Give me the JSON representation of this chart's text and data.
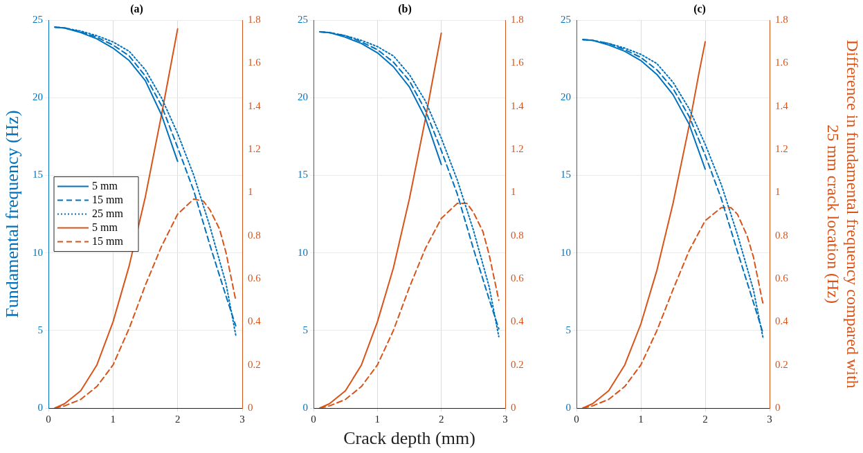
{
  "chart_data": [
    {
      "type": "line",
      "title": "(a)",
      "ylabel": "Fundamental frequency (Hz)",
      "xlim": [
        0,
        3
      ],
      "xticks": [
        0,
        1,
        2,
        3
      ],
      "ylim": [
        0,
        25
      ],
      "yticks": [
        0,
        5,
        10,
        15,
        20,
        25
      ],
      "y2lim": [
        0,
        1.8
      ],
      "y2ticks": [
        0,
        0.2,
        0.4,
        0.6,
        0.8,
        1,
        1.2,
        1.4,
        1.6,
        1.8
      ],
      "grid": true,
      "legend": "left",
      "marker": "none",
      "series": [
        {
          "name": "5 mm",
          "color": "#0072bd",
          "line_style": "solid",
          "x": [
            0.1,
            0.25,
            0.5,
            0.75,
            1,
            1.25,
            1.5,
            1.75,
            2
          ],
          "values": [
            24.55,
            24.5,
            24.2,
            23.8,
            23.2,
            22.4,
            21.1,
            18.9,
            15.9
          ]
        },
        {
          "name": "15 mm",
          "color": "#0072bd",
          "line_style": "dashed",
          "x": [
            0.1,
            0.25,
            0.5,
            0.75,
            1,
            1.25,
            1.5,
            1.75,
            2,
            2.25,
            2.5,
            2.75,
            2.9
          ],
          "values": [
            24.55,
            24.5,
            24.25,
            23.9,
            23.4,
            22.7,
            21.4,
            19.5,
            16.8,
            14,
            10.5,
            7.2,
            5.3
          ]
        },
        {
          "name": "25 mm",
          "color": "#0072bd",
          "line_style": "dotted",
          "x": [
            0.1,
            0.25,
            0.5,
            0.75,
            1,
            1.25,
            1.5,
            1.75,
            2,
            2.25,
            2.5,
            2.75,
            2.9
          ],
          "values": [
            24.55,
            24.5,
            24.3,
            24,
            23.6,
            23,
            21.8,
            20,
            17.7,
            15,
            11.7,
            8,
            4.7
          ]
        },
        {
          "name": "5 mm",
          "color": "#d95319",
          "line_style": "solid",
          "axis": "y2",
          "x": [
            0.1,
            0.25,
            0.5,
            0.75,
            1,
            1.25,
            1.5,
            1.75,
            1.9,
            2
          ],
          "values": [
            0,
            0.02,
            0.08,
            0.2,
            0.4,
            0.66,
            0.98,
            1.36,
            1.6,
            1.76
          ]
        },
        {
          "name": "15 mm",
          "color": "#d95319",
          "line_style": "dashed",
          "axis": "y2",
          "x": [
            0.1,
            0.25,
            0.5,
            0.75,
            1,
            1.25,
            1.5,
            1.75,
            2,
            2.25,
            2.4,
            2.5,
            2.65,
            2.75,
            2.9
          ],
          "values": [
            0,
            0.01,
            0.04,
            0.1,
            0.2,
            0.37,
            0.57,
            0.75,
            0.9,
            0.97,
            0.96,
            0.92,
            0.83,
            0.72,
            0.5
          ]
        }
      ]
    },
    {
      "type": "line",
      "title": "(b)",
      "xlabel": "Crack depth (mm)",
      "xlim": [
        0,
        3
      ],
      "xticks": [
        0,
        1,
        2,
        3
      ],
      "ylim": [
        0,
        25
      ],
      "yticks": [
        0,
        5,
        10,
        15,
        20,
        25
      ],
      "y2lim": [
        0,
        1.8
      ],
      "y2ticks": [
        0,
        0.2,
        0.4,
        0.6,
        0.8,
        1,
        1.2,
        1.4,
        1.6,
        1.8
      ],
      "grid": true,
      "marker": "none",
      "series": [
        {
          "color": "#0072bd",
          "line_style": "solid",
          "x": [
            0.1,
            0.25,
            0.5,
            0.75,
            1,
            1.25,
            1.5,
            1.75,
            2
          ],
          "values": [
            24.25,
            24.2,
            23.9,
            23.5,
            22.9,
            22,
            20.7,
            18.7,
            15.7
          ]
        },
        {
          "color": "#0072bd",
          "line_style": "dashed",
          "x": [
            0.1,
            0.25,
            0.5,
            0.75,
            1,
            1.25,
            1.5,
            1.75,
            2,
            2.25,
            2.5,
            2.75,
            2.9
          ],
          "values": [
            24.25,
            24.2,
            24,
            23.6,
            23.1,
            22.3,
            21.1,
            19.2,
            16.6,
            13.8,
            10.3,
            7,
            5.1
          ]
        },
        {
          "color": "#0072bd",
          "line_style": "dotted",
          "x": [
            0.1,
            0.25,
            0.5,
            0.75,
            1,
            1.25,
            1.5,
            1.75,
            2,
            2.25,
            2.5,
            2.75,
            2.9
          ],
          "values": [
            24.25,
            24.2,
            24,
            23.7,
            23.3,
            22.7,
            21.5,
            19.8,
            17.4,
            14.7,
            11.5,
            7.8,
            4.6
          ]
        },
        {
          "color": "#d95319",
          "line_style": "solid",
          "axis": "y2",
          "x": [
            0.1,
            0.25,
            0.5,
            0.75,
            1,
            1.25,
            1.5,
            1.75,
            1.9,
            2
          ],
          "values": [
            0,
            0.02,
            0.08,
            0.2,
            0.4,
            0.65,
            0.97,
            1.34,
            1.58,
            1.74
          ]
        },
        {
          "color": "#d95319",
          "line_style": "dashed",
          "axis": "y2",
          "x": [
            0.1,
            0.25,
            0.5,
            0.75,
            1,
            1.25,
            1.5,
            1.75,
            2,
            2.25,
            2.4,
            2.5,
            2.65,
            2.75,
            2.9
          ],
          "values": [
            0,
            0.01,
            0.04,
            0.1,
            0.2,
            0.36,
            0.56,
            0.74,
            0.88,
            0.95,
            0.95,
            0.91,
            0.82,
            0.71,
            0.5
          ]
        }
      ]
    },
    {
      "type": "line",
      "title": "(c)",
      "y2label": "Difference in fundamental frequency compared with 25 mm crack location (Hz)",
      "xlim": [
        0,
        3
      ],
      "xticks": [
        0,
        1,
        2,
        3
      ],
      "ylim": [
        0,
        25
      ],
      "yticks": [
        0,
        5,
        10,
        15,
        20,
        25
      ],
      "y2lim": [
        0,
        1.8
      ],
      "y2ticks": [
        0,
        0.2,
        0.4,
        0.6,
        0.8,
        1,
        1.2,
        1.4,
        1.6,
        1.8
      ],
      "grid": true,
      "marker": "none",
      "series": [
        {
          "color": "#0072bd",
          "line_style": "solid",
          "x": [
            0.1,
            0.25,
            0.5,
            0.75,
            1,
            1.25,
            1.5,
            1.75,
            2
          ],
          "values": [
            23.75,
            23.7,
            23.4,
            23,
            22.4,
            21.5,
            20.2,
            18.3,
            15.4
          ]
        },
        {
          "color": "#0072bd",
          "line_style": "dashed",
          "x": [
            0.1,
            0.25,
            0.5,
            0.75,
            1,
            1.25,
            1.5,
            1.75,
            2,
            2.25,
            2.5,
            2.75,
            2.9
          ],
          "values": [
            23.75,
            23.7,
            23.5,
            23.1,
            22.6,
            21.8,
            20.6,
            18.8,
            16.3,
            13.5,
            10.1,
            6.8,
            4.8
          ]
        },
        {
          "color": "#0072bd",
          "line_style": "dotted",
          "x": [
            0.1,
            0.25,
            0.5,
            0.75,
            1,
            1.25,
            1.5,
            1.75,
            2,
            2.25,
            2.5,
            2.75,
            2.9
          ],
          "values": [
            23.75,
            23.7,
            23.5,
            23.2,
            22.8,
            22.2,
            21,
            19.3,
            17,
            14.4,
            11.2,
            7.6,
            4.5
          ]
        },
        {
          "color": "#d95319",
          "line_style": "solid",
          "axis": "y2",
          "x": [
            0.1,
            0.25,
            0.5,
            0.75,
            1,
            1.25,
            1.5,
            1.75,
            1.9,
            2
          ],
          "values": [
            0,
            0.02,
            0.08,
            0.2,
            0.39,
            0.64,
            0.95,
            1.31,
            1.55,
            1.7
          ]
        },
        {
          "color": "#d95319",
          "line_style": "dashed",
          "axis": "y2",
          "x": [
            0.1,
            0.25,
            0.5,
            0.75,
            1,
            1.25,
            1.5,
            1.75,
            2,
            2.25,
            2.4,
            2.5,
            2.65,
            2.75,
            2.9
          ],
          "values": [
            0,
            0.01,
            0.04,
            0.1,
            0.2,
            0.36,
            0.55,
            0.73,
            0.87,
            0.93,
            0.93,
            0.9,
            0.8,
            0.7,
            0.48
          ]
        }
      ]
    }
  ]
}
